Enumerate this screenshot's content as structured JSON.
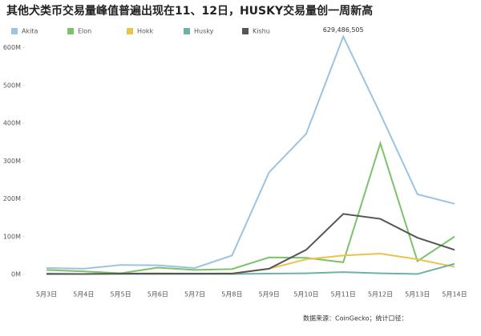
{
  "chart_data": {
    "type": "line",
    "title": "其他犬类币交易量峰值普遍出现在11、12日，HUSKY交易量创一周新高",
    "categories": [
      "5月3日",
      "5月4日",
      "5月5日",
      "5月6日",
      "5月7日",
      "5月8日",
      "5月9日",
      "5月10日",
      "5月11日",
      "5月12日",
      "5月13日",
      "5月14日"
    ],
    "series": [
      {
        "name": "Akita",
        "color": "#9dc3e0",
        "values": [
          17000000,
          15000000,
          25000000,
          24000000,
          17000000,
          50000000,
          270000000,
          372000000,
          629486505,
          425000000,
          212000000,
          187000000
        ],
        "value_labels": [
          null,
          null,
          null,
          null,
          null,
          null,
          null,
          null,
          "629,486,505",
          null,
          null,
          null
        ]
      },
      {
        "name": "Elon",
        "color": "#7dc26a",
        "values": [
          12000000,
          8000000,
          3000000,
          18000000,
          12000000,
          14000000,
          45000000,
          44000000,
          32000000,
          347000000,
          35000000,
          100000000
        ]
      },
      {
        "name": "Hokk",
        "color": "#e8c44a",
        "values": [
          1000000,
          1000000,
          2000000,
          3000000,
          2000000,
          3000000,
          15000000,
          40000000,
          50000000,
          55000000,
          40000000,
          20000000
        ]
      },
      {
        "name": "Husky",
        "color": "#6fb0a8",
        "values": [
          2000000,
          1000000,
          1000000,
          1000000,
          1000000,
          1000000,
          2000000,
          3000000,
          6000000,
          3000000,
          1000000,
          28000000
        ]
      },
      {
        "name": "Kishu",
        "color": "#555555",
        "values": [
          1000000,
          1000000,
          2000000,
          2000000,
          2000000,
          2000000,
          15000000,
          65000000,
          160000000,
          147000000,
          97000000,
          65000000
        ]
      }
    ],
    "ylim": [
      0,
      650000000
    ],
    "yticks": [
      {
        "value": 0,
        "label": "0M"
      },
      {
        "value": 100000000,
        "label": "100M"
      },
      {
        "value": 200000000,
        "label": "200M"
      },
      {
        "value": 300000000,
        "label": "300M"
      },
      {
        "value": 400000000,
        "label": "400M"
      },
      {
        "value": 500000000,
        "label": "500M"
      },
      {
        "value": 600000000,
        "label": "600M"
      }
    ],
    "source": "数据来源：CoinGecko；统计口径："
  }
}
